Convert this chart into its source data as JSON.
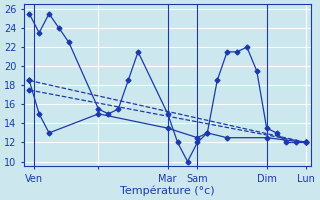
{
  "background_color": "#cce8ee",
  "grid_color": "#ffffff",
  "line_color": "#1a3aab",
  "xlabel": "Température (°c)",
  "ylim": [
    9.5,
    26.5
  ],
  "xlim": [
    -0.5,
    28.5
  ],
  "yticks": [
    10,
    12,
    14,
    16,
    18,
    20,
    22,
    24,
    26
  ],
  "xtick_positions": [
    0.5,
    7,
    14,
    17,
    24,
    28
  ],
  "xtick_labels": [
    "Ven",
    "",
    "Mar",
    "Sam",
    "Dim",
    "Lun"
  ],
  "vlines": [
    0.5,
    14,
    17,
    24
  ],
  "series1_x": [
    0,
    1,
    2,
    3,
    4,
    7,
    8,
    9,
    10,
    11,
    14,
    15,
    16,
    17,
    18,
    19,
    20,
    21,
    22,
    23,
    24,
    25,
    26,
    27,
    28
  ],
  "series1_y": [
    25.5,
    23.5,
    25.5,
    24.0,
    22.5,
    15.5,
    15.0,
    15.5,
    18.5,
    21.5,
    15.0,
    12.0,
    10.0,
    12.0,
    13.0,
    18.5,
    21.5,
    21.5,
    22.0,
    19.5,
    13.5,
    13.0,
    12.0,
    12.0,
    12.0
  ],
  "series2_x": [
    0,
    1,
    2,
    7,
    14,
    17,
    18,
    20,
    24,
    28
  ],
  "series2_y": [
    18.5,
    15.0,
    13.0,
    15.0,
    13.5,
    12.5,
    13.0,
    12.5,
    12.5,
    12.0
  ],
  "trend1_x": [
    0,
    28
  ],
  "trend1_y": [
    18.5,
    12.0
  ],
  "trend2_x": [
    0,
    28
  ],
  "trend2_y": [
    17.5,
    12.0
  ]
}
